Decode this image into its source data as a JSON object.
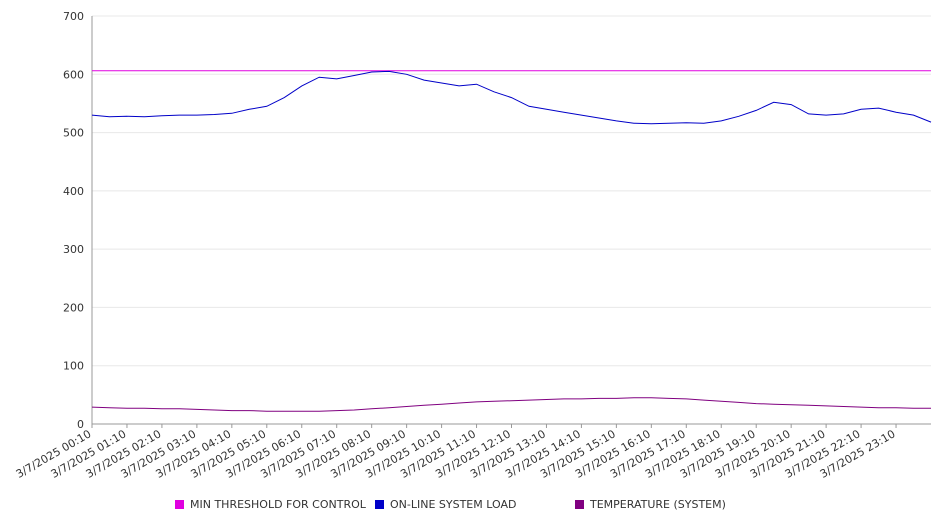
{
  "chart_data": {
    "type": "line",
    "title": "",
    "xlabel": "",
    "ylabel": "",
    "ylim": [
      0,
      700
    ],
    "yticks": [
      0,
      100,
      200,
      300,
      400,
      500,
      600,
      700
    ],
    "grid": true,
    "legend_position": "bottom",
    "x_labels": [
      "3/7/2025 00:10",
      "3/7/2025 01:10",
      "3/7/2025 02:10",
      "3/7/2025 03:10",
      "3/7/2025 04:10",
      "3/7/2025 05:10",
      "3/7/2025 06:10",
      "3/7/2025 07:10",
      "3/7/2025 08:10",
      "3/7/2025 09:10",
      "3/7/2025 10:10",
      "3/7/2025 11:10",
      "3/7/2025 12:10",
      "3/7/2025 13:10",
      "3/7/2025 14:10",
      "3/7/2025 15:10",
      "3/7/2025 16:10",
      "3/7/2025 17:10",
      "3/7/2025 18:10",
      "3/7/2025 19:10",
      "3/7/2025 20:10",
      "3/7/2025 21:10",
      "3/7/2025 22:10",
      "3/7/2025 23:10"
    ],
    "x_hours": [
      0,
      0.5,
      1,
      1.5,
      2,
      2.5,
      3,
      3.5,
      4,
      4.5,
      5,
      5.5,
      6,
      6.5,
      7,
      7.5,
      8,
      8.5,
      9,
      9.5,
      10,
      10.5,
      11,
      11.5,
      12,
      12.5,
      13,
      13.5,
      14,
      14.5,
      15,
      15.5,
      16,
      16.5,
      17,
      17.5,
      18,
      18.5,
      19,
      19.5,
      20,
      20.5,
      21,
      21.5,
      22,
      22.5,
      23,
      23.5,
      24
    ],
    "series": [
      {
        "name": "MIN THRESHOLD FOR CONTROL",
        "color": "#e000e0",
        "values": [
          606,
          606,
          606,
          606,
          606,
          606,
          606,
          606,
          606,
          606,
          606,
          606,
          606,
          606,
          606,
          606,
          606,
          606,
          606,
          606,
          606,
          606,
          606,
          606,
          606,
          606,
          606,
          606,
          606,
          606,
          606,
          606,
          606,
          606,
          606,
          606,
          606,
          606,
          606,
          606,
          606,
          606,
          606,
          606,
          606,
          606,
          606,
          606,
          606
        ]
      },
      {
        "name": "ON-LINE SYSTEM LOAD",
        "color": "#0000c8",
        "values": [
          530,
          527,
          528,
          527,
          529,
          530,
          530,
          531,
          533,
          540,
          545,
          560,
          580,
          595,
          592,
          598,
          604,
          605,
          600,
          590,
          585,
          580,
          583,
          570,
          560,
          545,
          540,
          535,
          530,
          525,
          520,
          516,
          515,
          516,
          517,
          516,
          520,
          528,
          538,
          552,
          548,
          532,
          530,
          532,
          540,
          542,
          535,
          530,
          518
        ]
      },
      {
        "name": "TEMPERATURE (SYSTEM)",
        "color": "#800080",
        "values": [
          29,
          28,
          27,
          27,
          26,
          26,
          25,
          24,
          23,
          23,
          22,
          22,
          22,
          22,
          23,
          24,
          26,
          28,
          30,
          32,
          34,
          36,
          38,
          39,
          40,
          41,
          42,
          43,
          43,
          44,
          44,
          45,
          45,
          44,
          43,
          41,
          39,
          37,
          35,
          34,
          33,
          32,
          31,
          30,
          29,
          28,
          28,
          27,
          27
        ]
      }
    ]
  }
}
